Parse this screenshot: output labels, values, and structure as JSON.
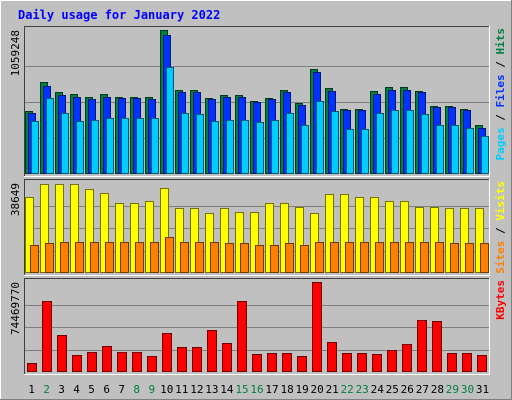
{
  "chart_data": {
    "type": "bar",
    "title": "Daily usage for January 2022",
    "categories": [
      "1",
      "2",
      "3",
      "4",
      "5",
      "6",
      "7",
      "8",
      "9",
      "10",
      "11",
      "12",
      "13",
      "14",
      "15",
      "16",
      "17",
      "18",
      "19",
      "20",
      "21",
      "22",
      "23",
      "24",
      "25",
      "26",
      "27",
      "28",
      "29",
      "30",
      "31"
    ],
    "weekend_days": [
      2,
      8,
      9,
      15,
      16,
      22,
      23,
      29,
      30
    ],
    "panels": [
      {
        "id": "hits",
        "ymax_label": "1059248",
        "ymax": 1059248,
        "axis_labels": [
          {
            "text": "Pages",
            "color": "#00ccff"
          },
          {
            "text": "Files",
            "color": "#0033ff"
          },
          {
            "text": "Hits",
            "color": "#008040"
          }
        ],
        "series": [
          {
            "name": "Hits",
            "color": "#008040",
            "values": [
              460000,
              680000,
              600000,
              590000,
              570000,
              590000,
              570000,
              570000,
              570000,
              1059248,
              620000,
              620000,
              560000,
              580000,
              580000,
              540000,
              560000,
              620000,
              520000,
              770000,
              630000,
              480000,
              480000,
              610000,
              640000,
              640000,
              610000,
              500000,
              500000,
              480000,
              360000
            ]
          },
          {
            "name": "Files",
            "color": "#0033ff",
            "values": [
              450000,
              650000,
              580000,
              570000,
              550000,
              570000,
              560000,
              560000,
              550000,
              1020000,
              600000,
              600000,
              550000,
              570000,
              570000,
              530000,
              550000,
              600000,
              510000,
              750000,
              610000,
              470000,
              470000,
              590000,
              620000,
              620000,
              600000,
              490000,
              490000,
              470000,
              340000
            ]
          },
          {
            "name": "Pages",
            "color": "#00ccff",
            "values": [
              390000,
              560000,
              450000,
              390000,
              400000,
              410000,
              410000,
              410000,
              410000,
              790000,
              450000,
              440000,
              390000,
              400000,
              400000,
              380000,
              400000,
              450000,
              360000,
              540000,
              460000,
              330000,
              330000,
              450000,
              470000,
              470000,
              440000,
              360000,
              360000,
              340000,
              280000
            ]
          }
        ]
      },
      {
        "id": "visits",
        "ymax_label": "38649",
        "ymax": 38649,
        "axis_labels": [
          {
            "text": "Sites",
            "color": "#ff8000"
          },
          {
            "text": "Visits",
            "color": "#ffff00"
          }
        ],
        "series": [
          {
            "name": "Visits",
            "color": "#ffff00",
            "values": [
              32500,
              38200,
              38200,
              38200,
              36000,
              34300,
              30100,
              30100,
              30800,
              36700,
              27700,
              27700,
              25800,
              27700,
              26400,
              26400,
              30100,
              30100,
              28400,
              25800,
              33900,
              33900,
              32600,
              32600,
              30800,
              30800,
              28400,
              28400,
              27700,
              27700,
              27700
            ]
          },
          {
            "name": "Sites",
            "color": "#ff8000",
            "values": [
              12100,
              12700,
              13300,
              13300,
              13300,
              13300,
              13300,
              13300,
              13300,
              15500,
              13300,
              13300,
              13300,
              12700,
              12700,
              12100,
              12100,
              12700,
              12100,
              13300,
              13300,
              13300,
              13300,
              13300,
              13300,
              13300,
              13300,
              13300,
              12700,
              12700,
              12700
            ]
          }
        ]
      },
      {
        "id": "kbytes",
        "ymax_label": "74469770",
        "ymax": 74469770,
        "axis_labels": [
          {
            "text": "KBytes",
            "color": "#ff0000"
          }
        ],
        "series": [
          {
            "name": "KBytes",
            "color": "#ff0000",
            "values": [
              7600000,
              58800000,
              30900000,
              14000000,
              16700000,
              21500000,
              16700000,
              16700000,
              13200000,
              31900000,
              20700000,
              20700000,
              35000000,
              23900000,
              58800000,
              14800000,
              15600000,
              15600000,
              13200000,
              74469770,
              24700000,
              15600000,
              15600000,
              14800000,
              18000000,
              23100000,
              43000000,
              42200000,
              15600000,
              15600000,
              14000000
            ]
          }
        ]
      }
    ]
  }
}
